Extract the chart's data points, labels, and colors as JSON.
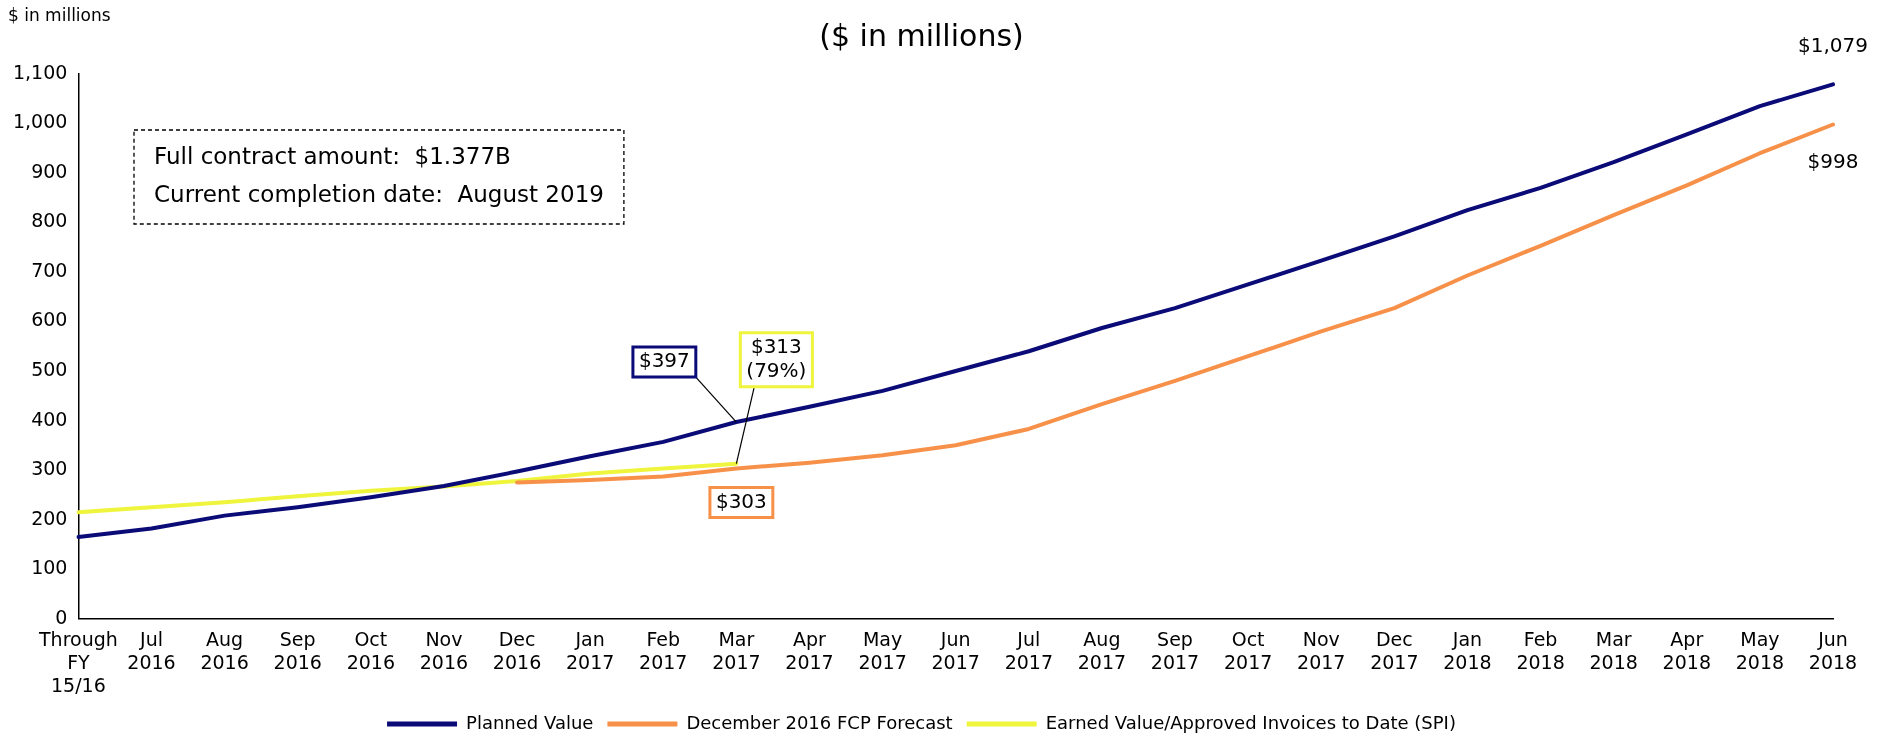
{
  "chart_data": {
    "type": "line",
    "title": "($ in millions)",
    "ylabel": "$ in millions",
    "annotations": [
      "Full contract amount:  $1.377B",
      "Current completion date:  August 2019"
    ],
    "categories": [
      "Through FY 15/16",
      "Jul 2016",
      "Aug 2016",
      "Sep 2016",
      "Oct 2016",
      "Nov 2016",
      "Dec 2016",
      "Jan 2017",
      "Feb 2017",
      "Mar 2017",
      "Apr 2017",
      "May 2017",
      "Jun 2017",
      "Jul 2017",
      "Aug 2017",
      "Sep 2017",
      "Oct 2017",
      "Nov 2017",
      "Dec 2017",
      "Jan 2018",
      "Feb 2018",
      "Mar 2018",
      "Apr 2018",
      "May 2018",
      "Jun 2018"
    ],
    "series": [
      {
        "name": "Planned Value",
        "color": "#0b0b78",
        "values": [
          165,
          182,
          208,
          225,
          245,
          268,
          297,
          328,
          357,
          397,
          428,
          460,
          500,
          540,
          587,
          627,
          675,
          723,
          772,
          825,
          870,
          922,
          978,
          1035,
          1079
        ],
        "value_labels": [
          null,
          null,
          null,
          null,
          null,
          null,
          null,
          null,
          null,
          "$397",
          null,
          null,
          null,
          null,
          null,
          null,
          null,
          null,
          null,
          null,
          null,
          null,
          null,
          null,
          "$1,079"
        ]
      },
      {
        "name": "December 2016 FCP Forecast",
        "color": "#f7914a",
        "values": [
          null,
          null,
          null,
          null,
          null,
          null,
          275,
          280,
          287,
          303,
          315,
          330,
          350,
          383,
          433,
          480,
          530,
          580,
          627,
          693,
          753,
          815,
          875,
          940,
          998
        ],
        "value_labels": [
          null,
          null,
          null,
          null,
          null,
          null,
          null,
          null,
          null,
          "$303",
          null,
          null,
          null,
          null,
          null,
          null,
          null,
          null,
          null,
          null,
          null,
          null,
          null,
          null,
          "$998"
        ]
      },
      {
        "name": "Earned Value/Approved Invoices to Date (SPI)",
        "color": "#eef53c",
        "values": [
          215,
          225,
          235,
          247,
          258,
          267,
          278,
          293,
          303,
          313,
          null,
          null,
          null,
          null,
          null,
          null,
          null,
          null,
          null,
          null,
          null,
          null,
          null,
          null,
          null
        ],
        "value_labels": [
          null,
          null,
          null,
          null,
          null,
          null,
          null,
          null,
          null,
          "$313 (79%)",
          null,
          null,
          null,
          null,
          null,
          null,
          null,
          null,
          null,
          null,
          null,
          null,
          null,
          null,
          null
        ]
      }
    ],
    "ylim": [
      0,
      1100
    ],
    "yticks": [
      0,
      100,
      200,
      300,
      400,
      500,
      600,
      700,
      800,
      900,
      {
        "value": 1000,
        "label": "1,000"
      },
      {
        "value": 1100,
        "label": "1,100"
      }
    ],
    "grid": false,
    "legend": "bottom",
    "marker": "none",
    "line_style": "solid"
  }
}
